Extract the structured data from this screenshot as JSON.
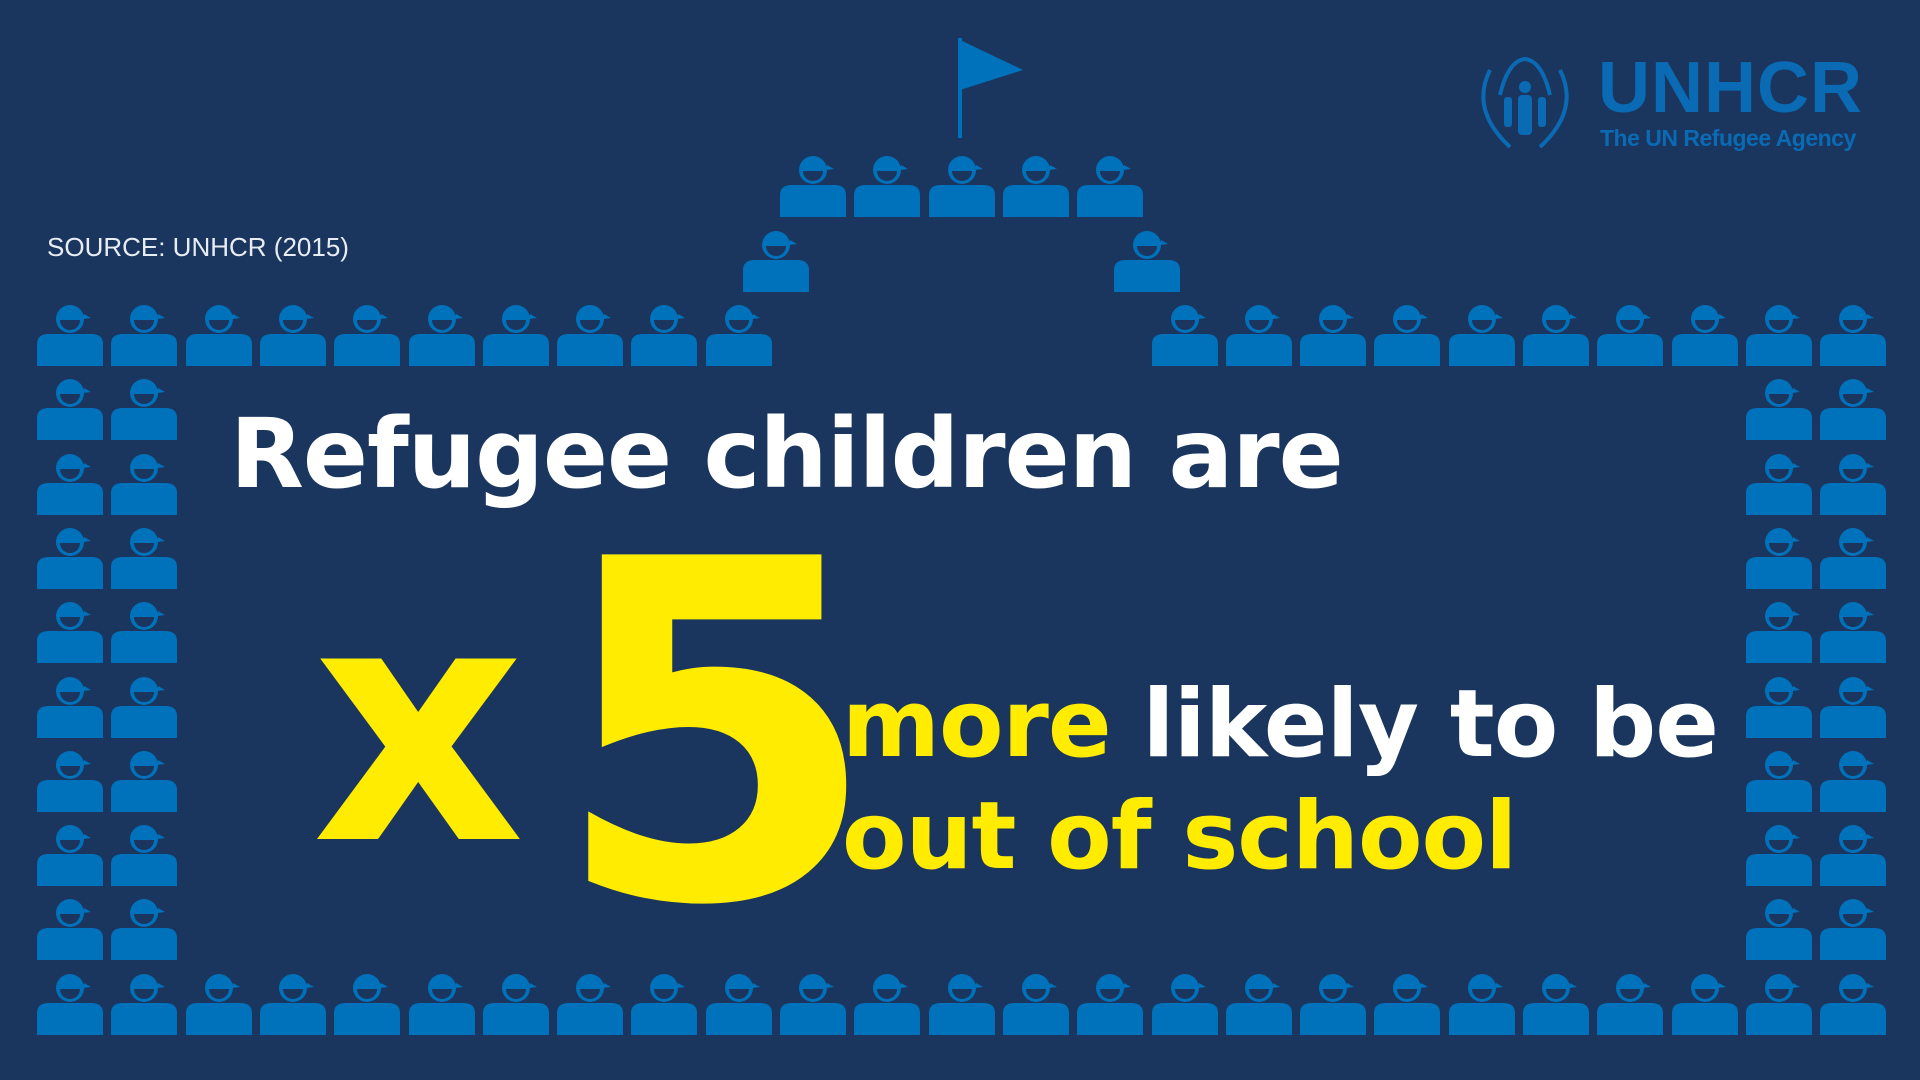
{
  "source": "SOURCE: UNHCR (2015)",
  "headline": {
    "line1": "Refugee children are",
    "multiplier_prefix": "x",
    "multiplier_value": "5",
    "line2_highlight": "more",
    "line2_rest": " likely to be",
    "line3": "out of school"
  },
  "logo": {
    "name": "UNHCR",
    "tagline": "The UN Refugee Agency"
  },
  "icons": {
    "person": "child-person-icon",
    "flag": "flag-icon"
  },
  "colors": {
    "background": "#1a365e",
    "icon": "#0072bc",
    "highlight": "#ffec00",
    "text": "#ffffff"
  }
}
